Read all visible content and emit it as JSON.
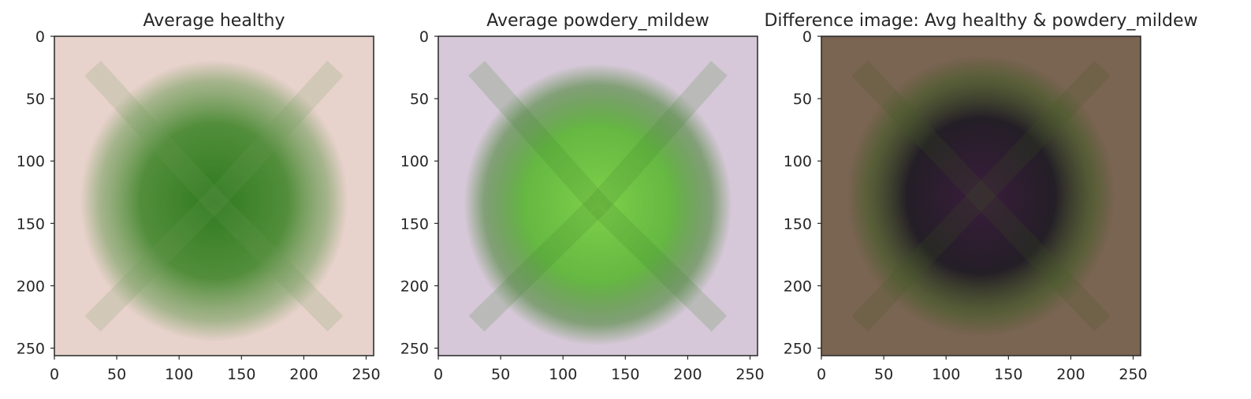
{
  "chart_data": [
    {
      "type": "heatmap",
      "title": "Average healthy",
      "xlim": [
        0,
        256
      ],
      "ylim": [
        256,
        0
      ],
      "xticks": [
        0,
        50,
        100,
        150,
        200,
        250
      ],
      "yticks": [
        0,
        50,
        100,
        150,
        200,
        250
      ],
      "image": {
        "background": "#e8d2cc",
        "blob_center": [
          128,
          132
        ],
        "blob_colors": [
          "#2f7a1f",
          "#4a8a33",
          "#6f9c58"
        ],
        "description_colors": {
          "bg": "#e8d2cc",
          "core": "#2f7a1f"
        }
      }
    },
    {
      "type": "heatmap",
      "title": "Average powdery_mildew",
      "xlim": [
        0,
        256
      ],
      "ylim": [
        256,
        0
      ],
      "xticks": [
        0,
        50,
        100,
        150,
        200,
        250
      ],
      "yticks": [
        0,
        50,
        100,
        150,
        200,
        250
      ],
      "image": {
        "background": "#d6c8d8",
        "blob_center": [
          128,
          135
        ],
        "blob_colors": [
          "#7fd04a",
          "#5fb73a",
          "#3f7f2a"
        ],
        "description_colors": {
          "bg": "#d6c8d8",
          "core": "#7fd04a"
        }
      }
    },
    {
      "type": "heatmap",
      "title": "Difference image: Avg healthy & powdery_mildew",
      "xlim": [
        0,
        256
      ],
      "ylim": [
        256,
        0
      ],
      "xticks": [
        0,
        50,
        100,
        150,
        200,
        250
      ],
      "yticks": [
        0,
        50,
        100,
        150,
        200,
        250
      ],
      "image": {
        "background": "#7a6452",
        "blob_center": [
          128,
          128
        ],
        "blob_colors": [
          "#3a1d3c",
          "#1f1a24",
          "#3f5a24"
        ],
        "description_colors": {
          "bg": "#7a6452",
          "core": "#3a1d3c"
        }
      }
    }
  ]
}
